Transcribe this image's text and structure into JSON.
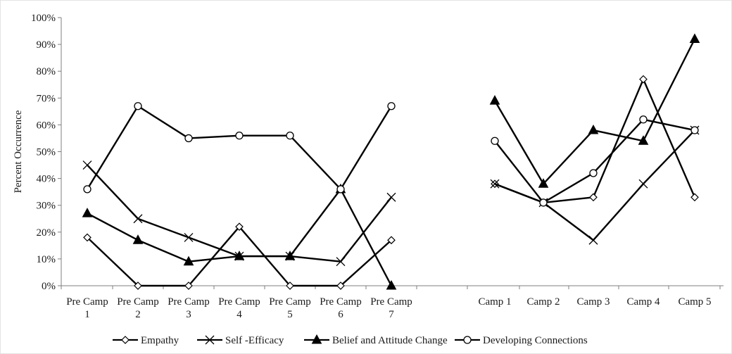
{
  "chart_data": {
    "type": "line",
    "title": "",
    "ylabel": "Percent Occurrence",
    "ylim": [
      0,
      100
    ],
    "y_ticks": [
      "0%",
      "10%",
      "20%",
      "30%",
      "40%",
      "50%",
      "60%",
      "70%",
      "80%",
      "90%",
      "100%"
    ],
    "grid": false,
    "legend_position": "bottom",
    "groups": [
      {
        "categories": [
          [
            "Pre Camp",
            "1"
          ],
          [
            "Pre Camp",
            "2"
          ],
          [
            "Pre Camp",
            "3"
          ],
          [
            "Pre Camp",
            "4"
          ],
          [
            "Pre Camp",
            "5"
          ],
          [
            "Pre Camp",
            "6"
          ],
          [
            "Pre Camp",
            "7"
          ]
        ]
      },
      {
        "categories": [
          [
            "Camp  1"
          ],
          [
            "Camp  2"
          ],
          [
            "Camp  3"
          ],
          [
            "Camp  4"
          ],
          [
            "Camp  5"
          ]
        ]
      }
    ],
    "series": [
      {
        "name": "Empathy",
        "marker": "diamond-open",
        "values": [
          [
            18,
            0,
            0,
            22,
            0,
            0,
            17
          ],
          [
            38,
            31,
            33,
            77,
            33
          ]
        ]
      },
      {
        "name": "Self -Efficacy",
        "marker": "x",
        "values": [
          [
            45,
            25,
            18,
            11,
            11,
            9,
            33
          ],
          [
            38,
            31,
            17,
            38,
            58
          ]
        ]
      },
      {
        "name": "Belief and Attitude Change",
        "marker": "triangle-filled",
        "values": [
          [
            27,
            17,
            9,
            11,
            11,
            36,
            0
          ],
          [
            69,
            38,
            58,
            54,
            92
          ]
        ]
      },
      {
        "name": "Developing Connections",
        "marker": "circle-open",
        "values": [
          [
            36,
            67,
            55,
            56,
            56,
            36,
            67
          ],
          [
            54,
            31,
            42,
            62,
            58
          ]
        ]
      }
    ],
    "colors": {
      "line": "#000000",
      "axis": "#7f7f7f",
      "background": "#ffffff"
    }
  }
}
